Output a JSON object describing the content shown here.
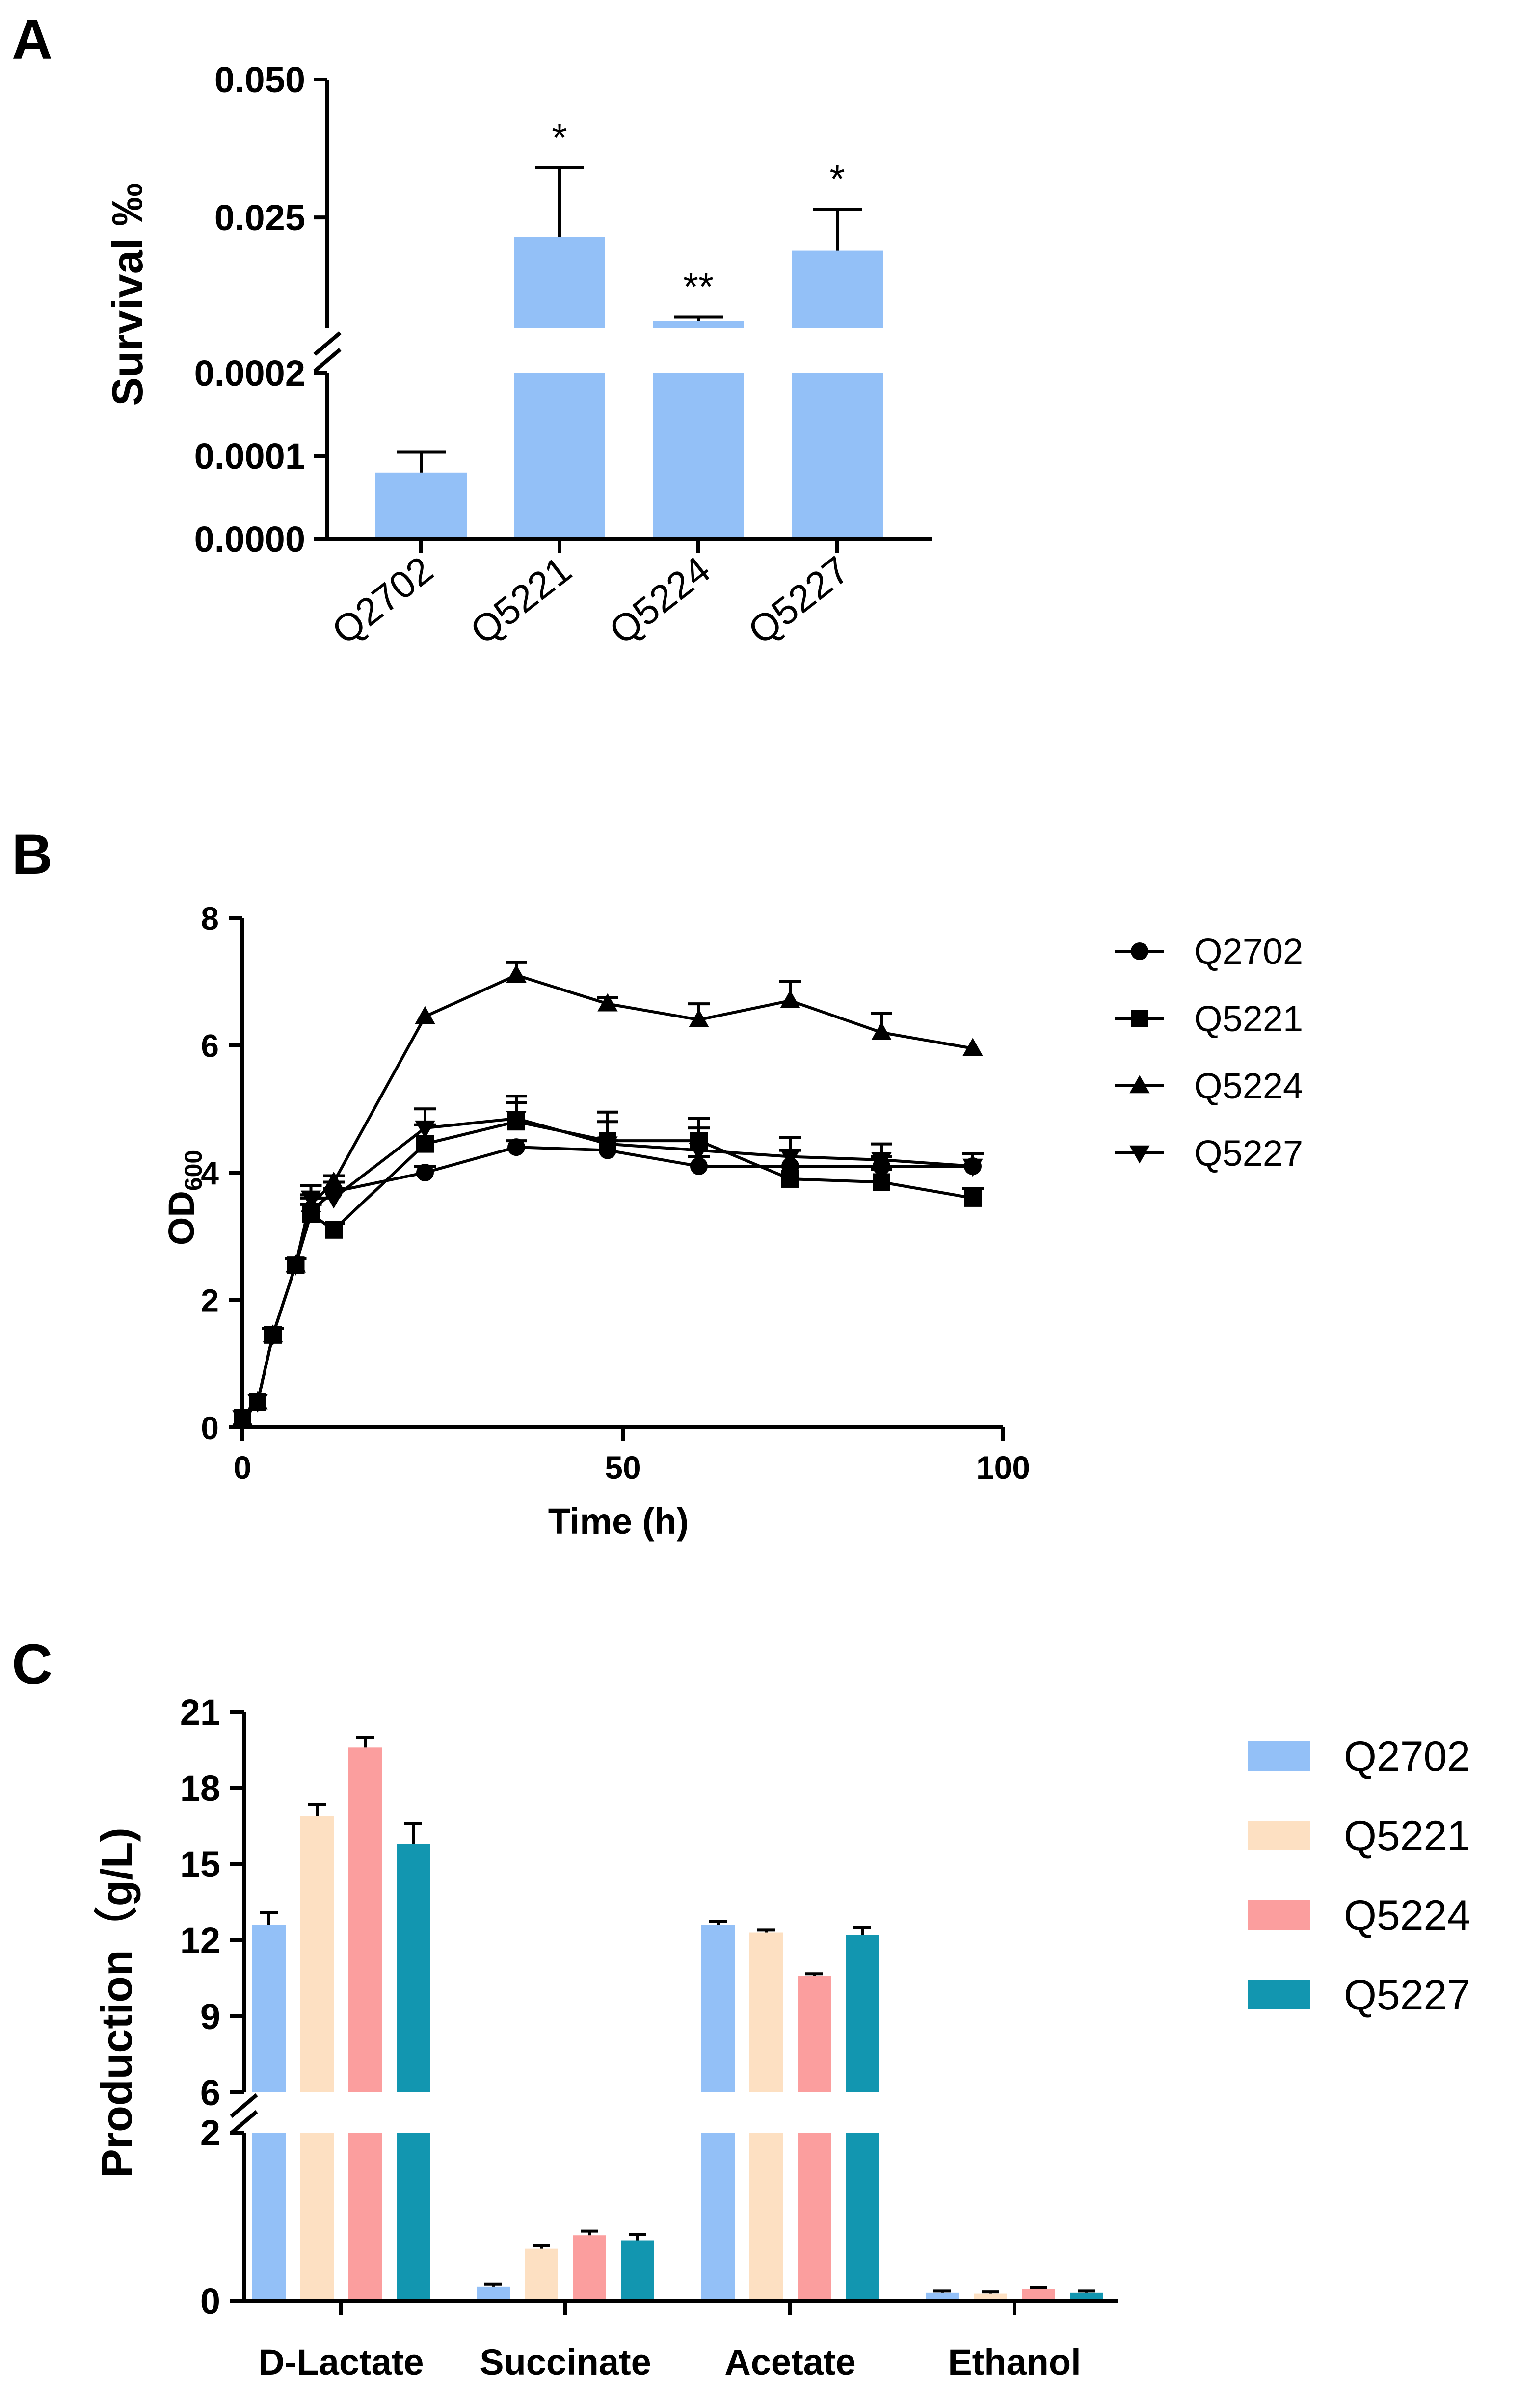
{
  "colors": {
    "q2702": "#93c0f7",
    "q5221": "#fde0c2",
    "q5224": "#fb9e9e",
    "q5227": "#1296b0",
    "axis": "#000000"
  },
  "chart_data": [
    {
      "type": "bar",
      "panel": "A",
      "ylabel": "Survival ‰",
      "broken_axis": true,
      "lower_segment": {
        "ylim": [
          0,
          0.0002
        ],
        "ticks": [
          "0.0000",
          "0.0001",
          "0.0002"
        ],
        "tick_values": [
          0,
          0.0001,
          0.0002
        ]
      },
      "upper_segment": {
        "ylim": [
          0.005,
          0.05
        ],
        "ticks": [
          "0.025",
          "0.050"
        ],
        "tick_values": [
          0.025,
          0.05
        ]
      },
      "categories": [
        "Q2702",
        "Q5221",
        "Q5224",
        "Q5227"
      ],
      "values": [
        8e-05,
        0.0215,
        0.0062,
        0.019
      ],
      "errors": [
        2.5e-05,
        0.0125,
        0.0008,
        0.0075
      ],
      "significance": [
        "",
        "*",
        "**",
        "*"
      ],
      "color": "#93c0f7",
      "grid": false
    },
    {
      "type": "line",
      "panel": "B",
      "xlabel": "Time (h)",
      "ylabel": "OD",
      "ylabel_sub": "600",
      "xlim": [
        0,
        100
      ],
      "ylim": [
        0,
        8
      ],
      "xticks": [
        0,
        50,
        100
      ],
      "yticks": [
        0,
        2,
        4,
        6,
        8
      ],
      "x": [
        0,
        2,
        4,
        7,
        9,
        12,
        24,
        36,
        48,
        60,
        72,
        84,
        96
      ],
      "series": [
        {
          "name": "Q2702",
          "marker": "circle",
          "values": [
            0.15,
            0.4,
            1.45,
            2.55,
            3.4,
            3.7,
            4.0,
            4.4,
            4.35,
            4.1,
            4.1,
            4.1,
            4.1
          ],
          "errors": [
            0.02,
            0.05,
            0.1,
            0.1,
            0.2,
            0.15,
            0.1,
            0.1,
            0.15,
            0.15,
            0.25,
            0.15,
            0.2
          ]
        },
        {
          "name": "Q5221",
          "marker": "square",
          "values": [
            0.15,
            0.4,
            1.45,
            2.55,
            3.35,
            3.1,
            4.45,
            4.8,
            4.5,
            4.5,
            3.9,
            3.85,
            3.6
          ],
          "errors": [
            0.02,
            0.05,
            0.1,
            0.1,
            0.15,
            0.1,
            0.3,
            0.3,
            0.45,
            0.35,
            0.2,
            0.2,
            0.15
          ]
        },
        {
          "name": "Q5224",
          "marker": "triangle-up",
          "values": [
            0.15,
            0.4,
            1.45,
            2.55,
            3.5,
            3.85,
            6.45,
            7.1,
            6.65,
            6.4,
            6.7,
            6.2,
            5.95
          ],
          "errors": [
            0.02,
            0.05,
            0.1,
            0.1,
            0.15,
            0.1,
            0.05,
            0.2,
            0.1,
            0.25,
            0.3,
            0.3,
            0.05
          ]
        },
        {
          "name": "Q5227",
          "marker": "triangle-down",
          "values": [
            0.15,
            0.4,
            1.45,
            2.55,
            3.6,
            3.6,
            4.7,
            4.85,
            4.45,
            4.35,
            4.25,
            4.2,
            4.1
          ],
          "errors": [
            0.02,
            0.05,
            0.1,
            0.1,
            0.2,
            0.15,
            0.3,
            0.35,
            0.35,
            0.35,
            0.3,
            0.25,
            0.2
          ]
        }
      ],
      "legend": "right",
      "grid": false
    },
    {
      "type": "bar",
      "panel": "C",
      "ylabel": "Production（g/L)",
      "broken_axis": true,
      "lower_segment": {
        "ylim": [
          0,
          2
        ],
        "ticks": [
          "0",
          "2"
        ],
        "tick_values": [
          0,
          2
        ]
      },
      "upper_segment": {
        "ylim": [
          6,
          21
        ],
        "ticks": [
          "6",
          "9",
          "12",
          "15",
          "18",
          "21"
        ],
        "tick_values": [
          6,
          9,
          12,
          15,
          18,
          21
        ]
      },
      "categories": [
        "D-Lactate",
        "Succinate",
        "Acetate",
        "Ethanol"
      ],
      "series": [
        {
          "name": "Q2702",
          "color": "#93c0f7",
          "values": [
            12.6,
            0.17,
            12.6,
            0.1
          ],
          "errors": [
            0.5,
            0.03,
            0.15,
            0.02
          ]
        },
        {
          "name": "Q5221",
          "color": "#fde0c2",
          "values": [
            16.9,
            0.62,
            12.3,
            0.09
          ],
          "errors": [
            0.45,
            0.04,
            0.1,
            0.02
          ]
        },
        {
          "name": "Q5224",
          "color": "#fb9e9e",
          "values": [
            19.6,
            0.78,
            10.6,
            0.14
          ],
          "errors": [
            0.4,
            0.05,
            0.08,
            0.02
          ]
        },
        {
          "name": "Q5227",
          "color": "#1296b0",
          "values": [
            15.8,
            0.72,
            12.2,
            0.1
          ],
          "errors": [
            0.8,
            0.07,
            0.3,
            0.02
          ]
        }
      ],
      "legend": "right",
      "grid": false
    }
  ]
}
